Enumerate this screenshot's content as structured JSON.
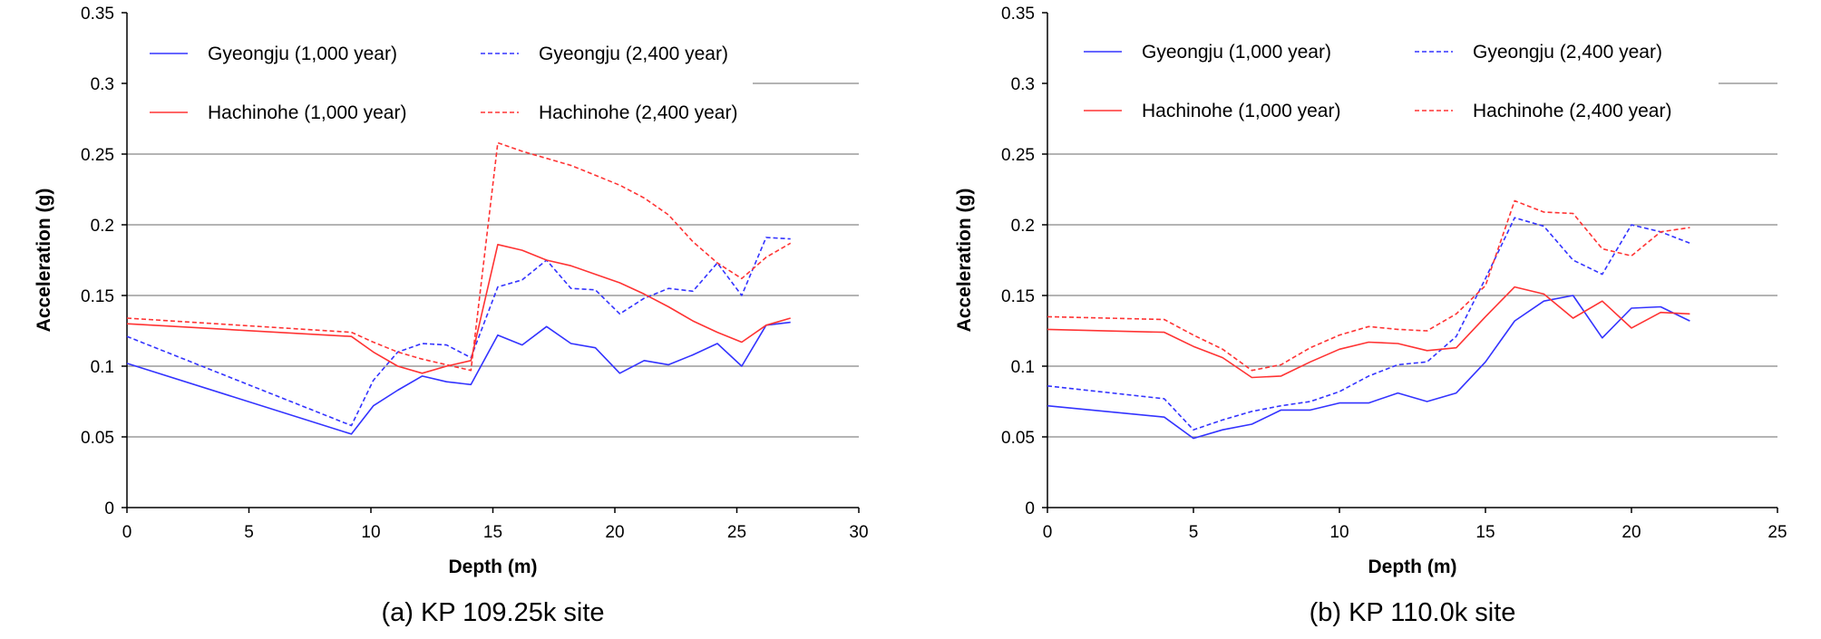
{
  "chart_data": [
    {
      "type": "line",
      "caption": "(a) KP 109.25k site",
      "xlabel": "Depth (m)",
      "ylabel": "Acceleration (g)",
      "xlim": [
        0,
        30
      ],
      "ylim": [
        0,
        0.35
      ],
      "xticks": [
        "0",
        "5",
        "10",
        "15",
        "20",
        "25",
        "30"
      ],
      "yticks": [
        "0",
        "0.05",
        "0.1",
        "0.15",
        "0.2",
        "0.25",
        "0.3",
        "0.35"
      ],
      "grid": "horizontal",
      "legend_position": "top",
      "series": [
        {
          "name": "Gyeongju (1,000 year)",
          "color": "#3333ff",
          "style": "solid",
          "x": [
            0,
            9.2,
            10.1,
            11.1,
            12.1,
            13.1,
            14.1,
            15.2,
            16.2,
            17.2,
            18.2,
            19.2,
            20.2,
            21.2,
            22.2,
            23.2,
            24.2,
            25.2,
            26.2,
            27.2
          ],
          "y": [
            0.102,
            0.052,
            0.072,
            0.083,
            0.093,
            0.089,
            0.087,
            0.122,
            0.115,
            0.128,
            0.116,
            0.113,
            0.095,
            0.104,
            0.101,
            0.108,
            0.116,
            0.1,
            0.129,
            0.131
          ]
        },
        {
          "name": "Gyeongju (2,400 year)",
          "color": "#3333ff",
          "style": "dashed",
          "x": [
            0,
            9.2,
            10.1,
            11.1,
            12.1,
            13.1,
            14.1,
            15.2,
            16.2,
            17.2,
            18.2,
            19.2,
            20.2,
            21.2,
            22.2,
            23.2,
            24.2,
            25.2,
            26.2,
            27.2
          ],
          "y": [
            0.121,
            0.058,
            0.09,
            0.11,
            0.116,
            0.115,
            0.106,
            0.156,
            0.161,
            0.175,
            0.155,
            0.154,
            0.137,
            0.148,
            0.155,
            0.153,
            0.173,
            0.15,
            0.191,
            0.19
          ]
        },
        {
          "name": "Hachinohe (1,000 year)",
          "color": "#ff3333",
          "style": "solid",
          "x": [
            0,
            9.2,
            10.1,
            11.1,
            12.1,
            13.1,
            14.1,
            15.2,
            16.2,
            17.2,
            18.2,
            19.2,
            20.2,
            21.2,
            22.2,
            23.2,
            24.2,
            25.2,
            26.2,
            27.2
          ],
          "y": [
            0.13,
            0.121,
            0.11,
            0.1,
            0.095,
            0.1,
            0.104,
            0.186,
            0.182,
            0.175,
            0.171,
            0.165,
            0.159,
            0.151,
            0.142,
            0.132,
            0.124,
            0.117,
            0.129,
            0.134
          ]
        },
        {
          "name": "Hachinohe (2,400 year)",
          "color": "#ff3333",
          "style": "dashed",
          "x": [
            0,
            9.2,
            10.1,
            11.1,
            12.1,
            13.1,
            14.1,
            15.2,
            16.2,
            17.2,
            18.2,
            19.2,
            20.2,
            21.2,
            22.2,
            23.2,
            24.2,
            25.2,
            26.2,
            27.2
          ],
          "y": [
            0.134,
            0.124,
            0.117,
            0.11,
            0.105,
            0.101,
            0.097,
            0.258,
            0.252,
            0.247,
            0.242,
            0.235,
            0.228,
            0.219,
            0.207,
            0.188,
            0.173,
            0.162,
            0.177,
            0.187
          ]
        }
      ]
    },
    {
      "type": "line",
      "caption": "(b) KP 110.0k site",
      "xlabel": "Depth (m)",
      "ylabel": "Acceleration (g)",
      "xlim": [
        0,
        25
      ],
      "ylim": [
        0,
        0.35
      ],
      "xticks": [
        "0",
        "5",
        "10",
        "15",
        "20",
        "25"
      ],
      "yticks": [
        "0",
        "0.05",
        "0.1",
        "0.15",
        "0.2",
        "0.25",
        "0.3",
        "0.35"
      ],
      "grid": "horizontal",
      "legend_position": "top",
      "series": [
        {
          "name": "Gyeongju (1,000 year)",
          "color": "#3333ff",
          "style": "solid",
          "x": [
            0,
            4,
            5,
            6,
            7,
            8,
            9,
            10,
            11,
            12,
            13,
            14,
            15,
            16,
            17,
            18,
            19,
            20,
            21,
            22
          ],
          "y": [
            0.072,
            0.064,
            0.049,
            0.055,
            0.059,
            0.069,
            0.069,
            0.074,
            0.074,
            0.081,
            0.075,
            0.081,
            0.103,
            0.132,
            0.146,
            0.15,
            0.12,
            0.141,
            0.142,
            0.132
          ]
        },
        {
          "name": "Gyeongju (2,400 year)",
          "color": "#3333ff",
          "style": "dashed",
          "x": [
            0,
            4,
            5,
            6,
            7,
            8,
            9,
            10,
            11,
            12,
            13,
            14,
            15,
            16,
            17,
            18,
            19,
            20,
            21,
            22
          ],
          "y": [
            0.086,
            0.077,
            0.055,
            0.062,
            0.068,
            0.072,
            0.075,
            0.082,
            0.093,
            0.101,
            0.103,
            0.121,
            0.162,
            0.205,
            0.199,
            0.175,
            0.165,
            0.2,
            0.195,
            0.187
          ]
        },
        {
          "name": "Hachinohe (1,000 year)",
          "color": "#ff3333",
          "style": "solid",
          "x": [
            0,
            4,
            5,
            6,
            7,
            8,
            9,
            10,
            11,
            12,
            13,
            14,
            15,
            16,
            17,
            18,
            19,
            20,
            21,
            22
          ],
          "y": [
            0.126,
            0.124,
            0.114,
            0.106,
            0.092,
            0.093,
            0.103,
            0.112,
            0.117,
            0.116,
            0.111,
            0.113,
            0.135,
            0.156,
            0.151,
            0.134,
            0.146,
            0.127,
            0.138,
            0.137
          ]
        },
        {
          "name": "Hachinohe (2,400 year)",
          "color": "#ff3333",
          "style": "dashed",
          "x": [
            0,
            4,
            5,
            6,
            7,
            8,
            9,
            10,
            11,
            12,
            13,
            14,
            15,
            16,
            17,
            18,
            19,
            20,
            21,
            22
          ],
          "y": [
            0.135,
            0.133,
            0.122,
            0.112,
            0.097,
            0.101,
            0.113,
            0.122,
            0.128,
            0.126,
            0.125,
            0.137,
            0.157,
            0.217,
            0.209,
            0.208,
            0.183,
            0.178,
            0.195,
            0.198
          ]
        }
      ]
    }
  ]
}
